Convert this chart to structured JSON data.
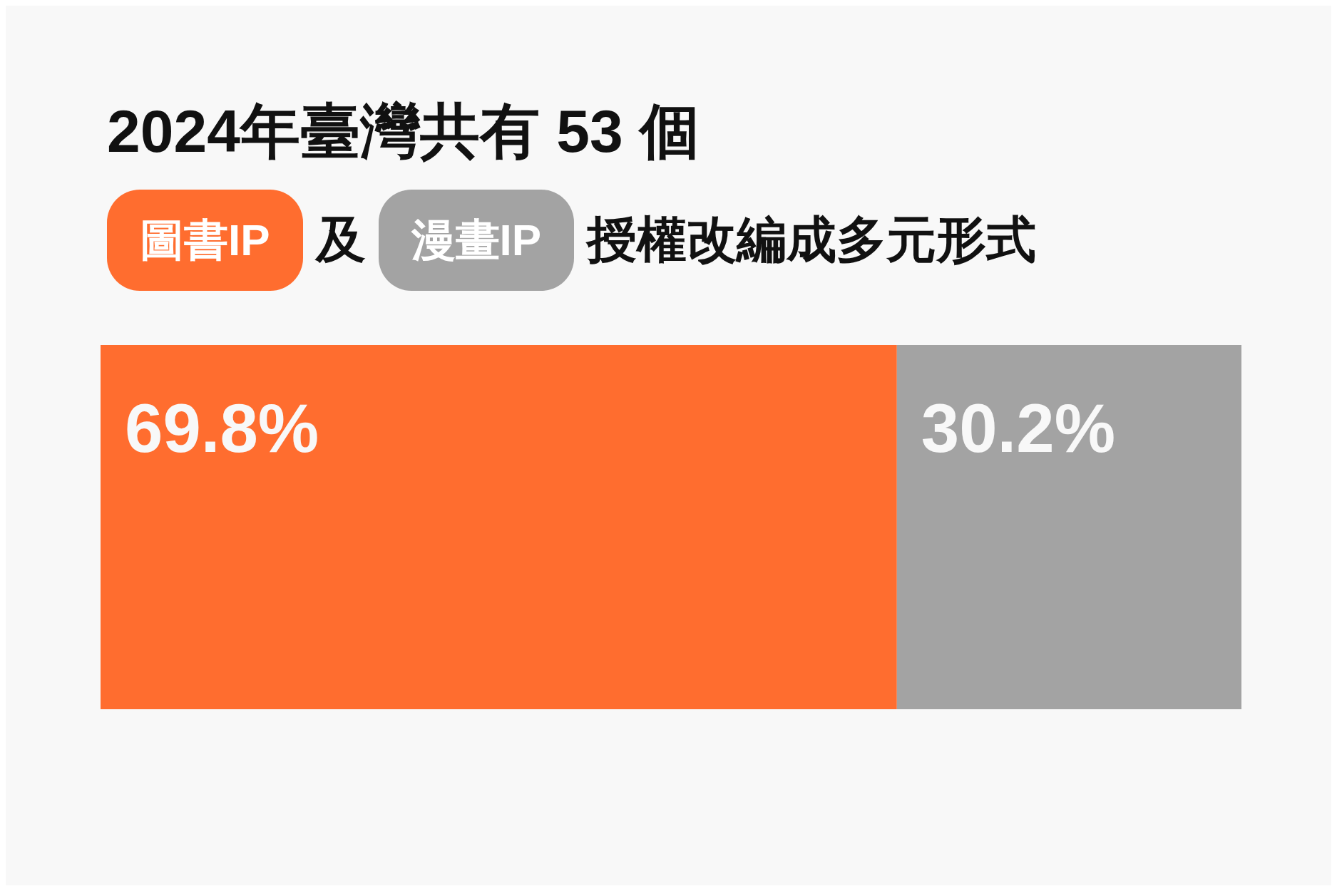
{
  "chart_data": {
    "type": "bar",
    "orientation": "horizontal",
    "stacked": true,
    "title": "2024年臺灣共有 53 個",
    "categories": [
      null
    ],
    "series": [
      {
        "name": "圖書IP",
        "color": "#ff6d2f",
        "values": [
          69.8
        ],
        "value_labels": [
          "69.8%"
        ]
      },
      {
        "name": "漫畫IP",
        "color": "#a3a3a3",
        "values": [
          30.2
        ],
        "value_labels": [
          "30.2%"
        ]
      }
    ],
    "annotations": [
      "及",
      "授權改編成多元形式"
    ],
    "legend": "top left"
  }
}
